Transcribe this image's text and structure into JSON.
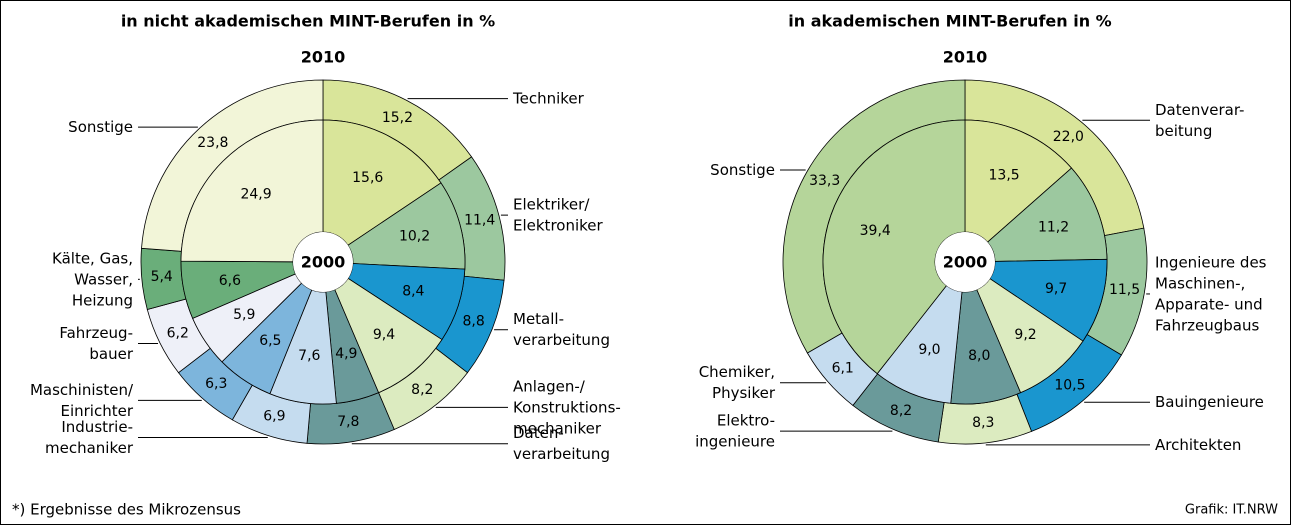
{
  "chart_data": [
    {
      "type": "pie",
      "title": "in nicht akademischen MINT-Berufen in %",
      "categories": [
        "Techniker",
        "Elektriker/\nElektroniker",
        "Metall-\nverarbeitung",
        "Anlagen-/\nKonstruktions-\nmechaniker",
        "Daten-\nverarbeitung",
        "Industrie-\nmechaniker",
        "Maschinisten/\nEinrichter",
        "Fahrzeug-\nbauer",
        "Kälte, Gas,\nWasser,\nHeizung",
        "Sonstige"
      ],
      "colors": [
        "#d9e59a",
        "#9cc89f",
        "#1a96cf",
        "#dcebc0",
        "#6a9a9a",
        "#c5dcef",
        "#7db5dc",
        "#eef0f8",
        "#6aae7a",
        "#f2f5d8"
      ],
      "series": [
        {
          "name": "2010",
          "values": [
            15.2,
            11.4,
            8.8,
            8.2,
            7.8,
            6.9,
            6.3,
            6.2,
            5.4,
            23.8
          ],
          "value_labels": [
            "15,2",
            "11,4",
            "8,8",
            "8,2",
            "7,8",
            "6,9",
            "6,3",
            "6,2",
            "5,4",
            "23,8"
          ]
        },
        {
          "name": "2000",
          "values": [
            15.6,
            10.2,
            8.4,
            9.4,
            4.9,
            7.6,
            6.5,
            5.9,
            6.6,
            24.9
          ],
          "value_labels": [
            "15,6",
            "10,2",
            "8,4",
            "9,4",
            "4,9",
            "7,6",
            "6,5",
            "5,9",
            "6,6",
            "24,9"
          ]
        }
      ]
    },
    {
      "type": "pie",
      "title": "in akademischen MINT-Berufen in %",
      "categories": [
        "Datenverar-\nbeitung",
        "Ingenieure des\nMaschinen-,\nApparate- und\nFahrzeugbaus",
        "Bauingenieure",
        "Architekten",
        "Elektro-\ningenieure",
        "Chemiker,\nPhysiker",
        "Sonstige"
      ],
      "colors": [
        "#d9e59a",
        "#9cc89f",
        "#1a96cf",
        "#dcebc0",
        "#6a9a9a",
        "#c5dcef",
        "#b5d59a"
      ],
      "series": [
        {
          "name": "2010",
          "values": [
            22.0,
            11.5,
            10.5,
            8.3,
            8.2,
            6.1,
            33.3
          ],
          "value_labels": [
            "22,0",
            "11,5",
            "10,5",
            "8,3",
            "8,2",
            "6,1",
            "33,3"
          ]
        },
        {
          "name": "2000",
          "values": [
            13.5,
            11.2,
            9.7,
            9.2,
            8.0,
            9.0,
            39.4
          ],
          "value_labels": [
            "13,5",
            "11,2",
            "9,7",
            "9,2",
            "8,0",
            "9,0",
            "39,4"
          ]
        }
      ]
    }
  ],
  "footnote": "*) Ergebnisse des Mikrozensus",
  "source": "Grafik: IT.NRW"
}
